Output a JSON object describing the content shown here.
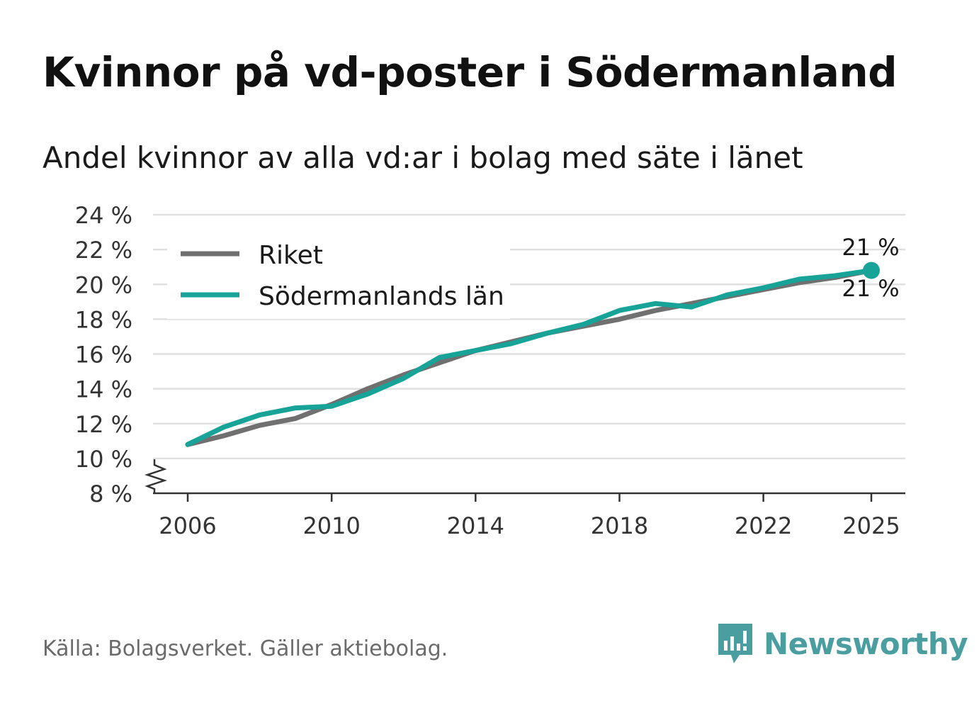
{
  "title": "Kvinnor på vd-poster i Södermanland",
  "subtitle": "Andel kvinnor av alla vd:ar i bolag med säte i länet",
  "source": "Källa: Bolagsverket. Gäller aktiebolag.",
  "brand": "Newsworthy",
  "colors": {
    "riket": "#707070",
    "lan": "#17a398",
    "grid": "#e0e0e0",
    "brand": "#4a9ea0"
  },
  "chart_data": {
    "type": "line",
    "ylim": [
      8,
      24
    ],
    "yticks": [
      8,
      10,
      12,
      14,
      16,
      18,
      20,
      22,
      24
    ],
    "yticklabels": [
      "8 %",
      "10 %",
      "12 %",
      "14 %",
      "16 %",
      "18 %",
      "20 %",
      "22 %",
      "24 %"
    ],
    "xlim": [
      2006,
      2025
    ],
    "xticks": [
      2006,
      2010,
      2014,
      2018,
      2022,
      2025
    ],
    "xticklabels": [
      "2006",
      "2010",
      "2014",
      "2018",
      "2022",
      "2025"
    ],
    "x": [
      2006,
      2007,
      2008,
      2009,
      2010,
      2011,
      2012,
      2013,
      2014,
      2015,
      2016,
      2017,
      2018,
      2019,
      2020,
      2021,
      2022,
      2023,
      2024,
      2025
    ],
    "series": [
      {
        "name": "Riket",
        "values": [
          10.8,
          11.3,
          11.9,
          12.3,
          13.1,
          14.0,
          14.8,
          15.5,
          16.2,
          16.7,
          17.2,
          17.6,
          18.0,
          18.5,
          18.9,
          19.3,
          19.7,
          20.1,
          20.4,
          20.8
        ]
      },
      {
        "name": "Södermanlands län",
        "values": [
          10.8,
          11.8,
          12.5,
          12.9,
          13.0,
          13.7,
          14.6,
          15.8,
          16.2,
          16.6,
          17.2,
          17.7,
          18.5,
          18.9,
          18.7,
          19.4,
          19.8,
          20.3,
          20.5,
          20.8
        ]
      }
    ],
    "end_labels": [
      "21 %",
      "21 %"
    ],
    "legend": "top-left",
    "grid": true
  }
}
